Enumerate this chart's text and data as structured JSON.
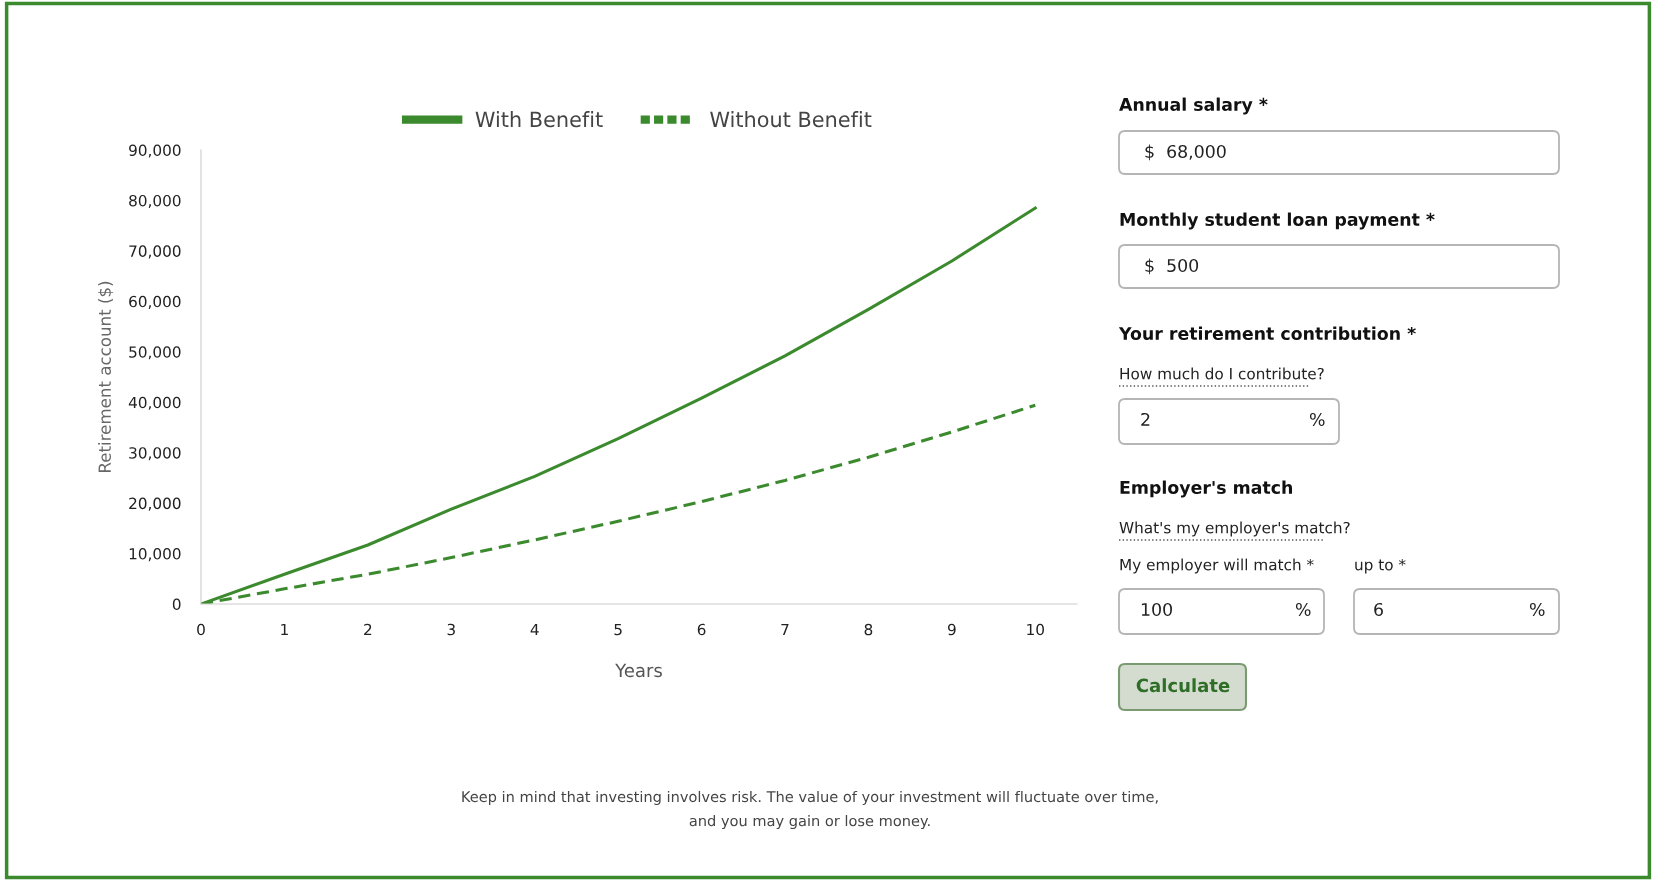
{
  "chart_data": [
    {
      "type": "line",
      "xlabel": "Years",
      "ylabel": "Retirement account ($)",
      "x": [
        0,
        1,
        2,
        3,
        4,
        5,
        6,
        7,
        8,
        9,
        10
      ],
      "series": [
        {
          "name": "With Benefit",
          "color": "#3b8a2e",
          "line_style": "solid",
          "values": [
            0,
            5900,
            11700,
            18800,
            25300,
            32800,
            40800,
            49200,
            58400,
            68000,
            78500
          ]
        },
        {
          "name": "Without Benefit",
          "color": "#3b8a2e",
          "line_style": "dashed",
          "values": [
            0,
            3000,
            5900,
            9200,
            12700,
            16400,
            20300,
            24500,
            29100,
            34100,
            39400
          ]
        }
      ],
      "xlim": [
        0,
        10.5
      ],
      "xticks": [
        0,
        1,
        2,
        3,
        4,
        5,
        6,
        7,
        8,
        9,
        10
      ],
      "ylim": [
        0,
        90000
      ],
      "yticks": [
        {
          "value": 0,
          "label": "0"
        },
        {
          "value": 10000,
          "label": "10,000"
        },
        {
          "value": 20000,
          "label": "20,000"
        },
        {
          "value": 30000,
          "label": "30,000"
        },
        {
          "value": 40000,
          "label": "40,000"
        },
        {
          "value": 50000,
          "label": "50,000"
        },
        {
          "value": 60000,
          "label": "60,000"
        },
        {
          "value": 70000,
          "label": "70,000"
        },
        {
          "value": 80000,
          "label": "80,000"
        },
        {
          "value": 90000,
          "label": "90,000"
        }
      ],
      "grid": false,
      "legend": "top",
      "marker": "none",
      "annotations": [
        "Keep in mind that investing involves risk. The value of your investment will fluctuate over time,\nand you may gain or lose money."
      ]
    },
    {
      "type": "other",
      "annotations": [
        "Annual salary *",
        "$  68,000",
        "Monthly student loan payment *",
        "$  500",
        "Your retirement contribution *",
        "How much do I contribute?",
        "2",
        "%",
        "Employer's match",
        "What's my employer's match?",
        "My employer will match *",
        "up to *",
        "100",
        "%",
        "6",
        "%",
        "Calculate"
      ]
    }
  ]
}
